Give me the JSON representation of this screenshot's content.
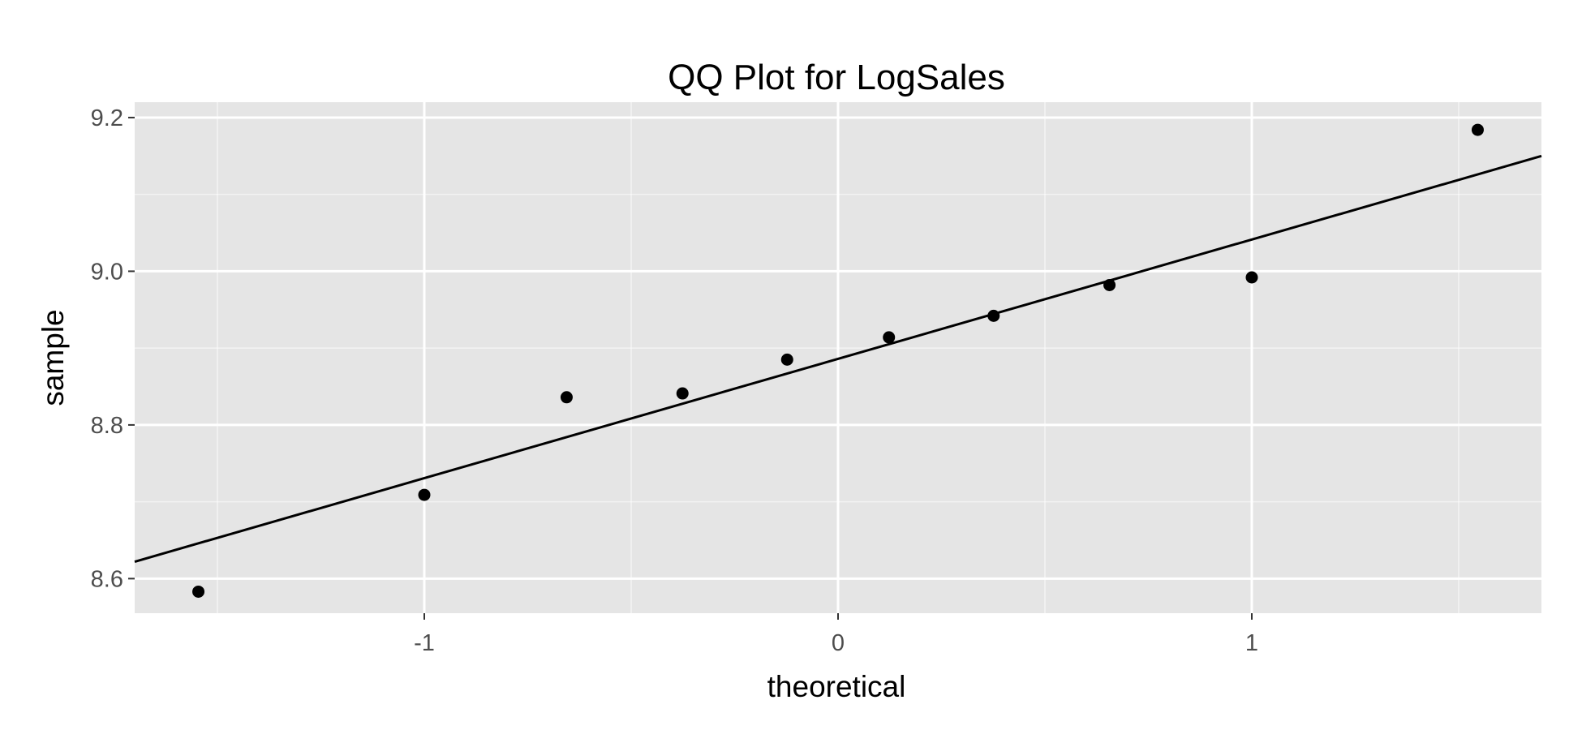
{
  "chart_data": {
    "type": "scatter",
    "title": "QQ Plot for LogSales",
    "xlabel": "theoretical",
    "ylabel": "sample",
    "xlim": [
      -1.7,
      1.7
    ],
    "ylim": [
      8.555,
      9.22
    ],
    "x_ticks": [
      -1,
      0,
      1
    ],
    "x_tick_labels": [
      "-1",
      "0",
      "1"
    ],
    "y_ticks": [
      8.6,
      8.8,
      9.0,
      9.2
    ],
    "y_tick_labels": [
      "8.6",
      "8.8",
      "9.0",
      "9.2"
    ],
    "x_minor_ticks": [
      -1.5,
      -0.5,
      0.5,
      1.5
    ],
    "y_minor_ticks": [
      8.7,
      8.9,
      9.1
    ],
    "grid": true,
    "legend": "none",
    "colors": {
      "panel": "#e5e5e5",
      "grid": "#ffffff",
      "points": "#000000",
      "line": "#000000"
    },
    "series": [
      {
        "x": [
          -1.546,
          -1.0,
          -0.656,
          -0.376,
          -0.123,
          0.123,
          0.376,
          0.656,
          1.0,
          1.546
        ],
        "values": [
          8.583,
          8.709,
          8.836,
          8.841,
          8.885,
          8.914,
          8.942,
          8.982,
          8.992,
          9.184
        ]
      }
    ],
    "reference_line": {
      "x": [
        -1.7,
        1.7
      ],
      "y": [
        8.622,
        9.15
      ]
    }
  }
}
